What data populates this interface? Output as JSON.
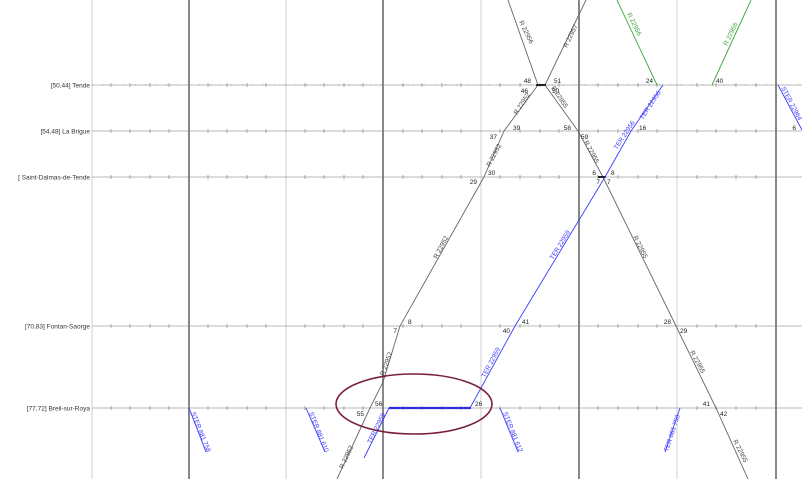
{
  "stations": [
    {
      "id": "tende",
      "label": "[50,44] Tende"
    },
    {
      "id": "brigue",
      "label": "[54,48] La Brigue"
    },
    {
      "id": "dalmas",
      "label": "[ Saint-Dalmas-de-Tende"
    },
    {
      "id": "fontan",
      "label": "[70,83] Fontan-Saorge"
    },
    {
      "id": "breil",
      "label": "[77,72] Breil-sur-Roya"
    }
  ],
  "colors": {
    "regional": "#666666",
    "ter": "#3b3bff",
    "green": "#3aa63a",
    "highlight": "#2d2de0",
    "ellipse": "#7a1f3a",
    "hour_line": "#888888",
    "half_line": "#cfcfcf",
    "station_line": "#777777"
  },
  "trains": [
    {
      "id": "r1",
      "label": "R 22956",
      "color": "regional"
    },
    {
      "id": "r2",
      "label": "R 22957",
      "color": "regional"
    },
    {
      "id": "r3",
      "label": "R 22952",
      "color": "regional"
    },
    {
      "id": "r3b",
      "label": "R 22952",
      "color": "regional"
    },
    {
      "id": "r4",
      "label": "R 22955",
      "color": "regional"
    },
    {
      "id": "r4b",
      "label": "R 22955",
      "color": "regional"
    },
    {
      "id": "r4c",
      "label": "R 22955",
      "color": "regional"
    },
    {
      "id": "r5",
      "label": "R 22952",
      "color": "regional"
    },
    {
      "id": "g1",
      "label": "R 22956",
      "color": "green"
    },
    {
      "id": "g2",
      "label": "R 22956",
      "color": "green"
    },
    {
      "id": "b1",
      "label": "TER 22956",
      "color": "ter"
    },
    {
      "id": "b2",
      "label": "TER 22956",
      "color": "ter"
    },
    {
      "id": "b3",
      "label": "TER 22959",
      "color": "ter"
    },
    {
      "id": "b4",
      "label": "TER 22959",
      "color": "ter"
    },
    {
      "id": "b5",
      "label": "STER 22964",
      "color": "ter"
    },
    {
      "id": "b6",
      "label": "TER 22959",
      "color": "ter"
    },
    {
      "id": "b7",
      "label": "STER 881 758",
      "color": "ter"
    },
    {
      "id": "b8",
      "label": "STER 881 610",
      "color": "ter"
    },
    {
      "id": "b9",
      "label": "STER 881 612",
      "color": "ter"
    },
    {
      "id": "b10",
      "label": "TER 881 758",
      "color": "ter"
    }
  ],
  "minutes": [
    "48",
    "51",
    "46",
    "50",
    "37",
    "39",
    "58",
    "59",
    "29",
    "30",
    "6",
    "7",
    "7",
    "8",
    "24",
    "40",
    "16",
    "6",
    "7",
    "8",
    "40",
    "41",
    "28",
    "29",
    "55",
    "56",
    "26",
    "41",
    "42"
  ]
}
